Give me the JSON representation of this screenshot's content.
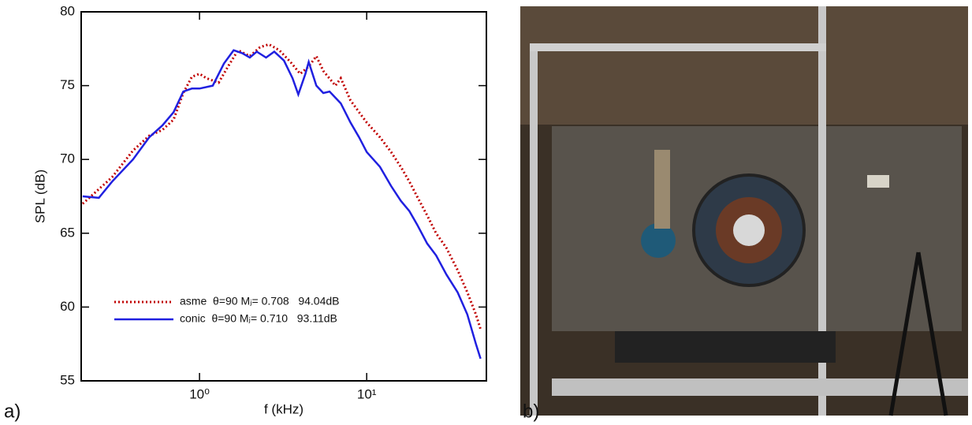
{
  "chart_data": {
    "type": "line",
    "xlabel": "f (kHz)",
    "ylabel": "SPL (dB)",
    "xscale": "log",
    "xlim": [
      0.196,
      52
    ],
    "ylim": [
      55,
      80
    ],
    "xticks": [
      {
        "value": 1,
        "label": "10⁰"
      },
      {
        "value": 10,
        "label": "10¹"
      }
    ],
    "yticks": [
      55,
      60,
      65,
      70,
      75,
      80
    ],
    "series": [
      {
        "name": "asme  θ=90 Mⱼ= 0.708   94.04dB",
        "color": "#c00000",
        "dash": "dotted",
        "x": [
          0.2,
          0.3,
          0.4,
          0.5,
          0.6,
          0.7,
          0.8,
          0.9,
          1.0,
          1.1,
          1.3,
          1.5,
          1.7,
          2.0,
          2.3,
          2.6,
          3.0,
          3.5,
          4.0,
          4.5,
          5.0,
          5.5,
          6.5,
          7,
          8,
          9,
          10,
          12,
          14,
          16,
          18,
          20,
          23,
          26,
          30,
          35,
          40,
          45,
          48
        ],
        "values": [
          67.0,
          68.8,
          70.6,
          71.6,
          72.0,
          72.7,
          74.5,
          75.6,
          75.8,
          75.5,
          75.2,
          76.4,
          77.4,
          77.0,
          77.6,
          77.8,
          77.4,
          76.6,
          75.8,
          76.3,
          77.0,
          76.0,
          75.0,
          75.5,
          74.0,
          73.2,
          72.5,
          71.5,
          70.5,
          69.5,
          68.5,
          67.5,
          66.2,
          65.0,
          64.0,
          62.5,
          61.0,
          59.5,
          58.5
        ]
      },
      {
        "name": "conic  θ=90 Mⱼ= 0.710   93.11dB",
        "color": "#2020e0",
        "dash": "solid",
        "x": [
          0.2,
          0.25,
          0.3,
          0.4,
          0.5,
          0.6,
          0.7,
          0.8,
          0.9,
          1.0,
          1.2,
          1.4,
          1.6,
          1.8,
          2.0,
          2.2,
          2.5,
          2.8,
          3.2,
          3.6,
          3.9,
          4.3,
          4.5,
          5.0,
          5.5,
          6,
          7,
          8,
          9,
          10,
          12,
          14,
          16,
          18,
          20,
          23,
          26,
          30,
          35,
          40,
          45,
          48
        ],
        "values": [
          67.5,
          67.4,
          68.5,
          70.0,
          71.5,
          72.3,
          73.2,
          74.6,
          74.8,
          74.8,
          75.0,
          76.5,
          77.4,
          77.2,
          76.9,
          77.3,
          76.9,
          77.3,
          76.7,
          75.5,
          74.4,
          75.8,
          76.6,
          75.0,
          74.5,
          74.6,
          73.8,
          72.5,
          71.5,
          70.5,
          69.5,
          68.2,
          67.2,
          66.5,
          65.6,
          64.3,
          63.5,
          62.2,
          61.0,
          59.5,
          57.5,
          56.5
        ]
      }
    ]
  },
  "panel_labels": [
    "a)",
    "b)"
  ]
}
